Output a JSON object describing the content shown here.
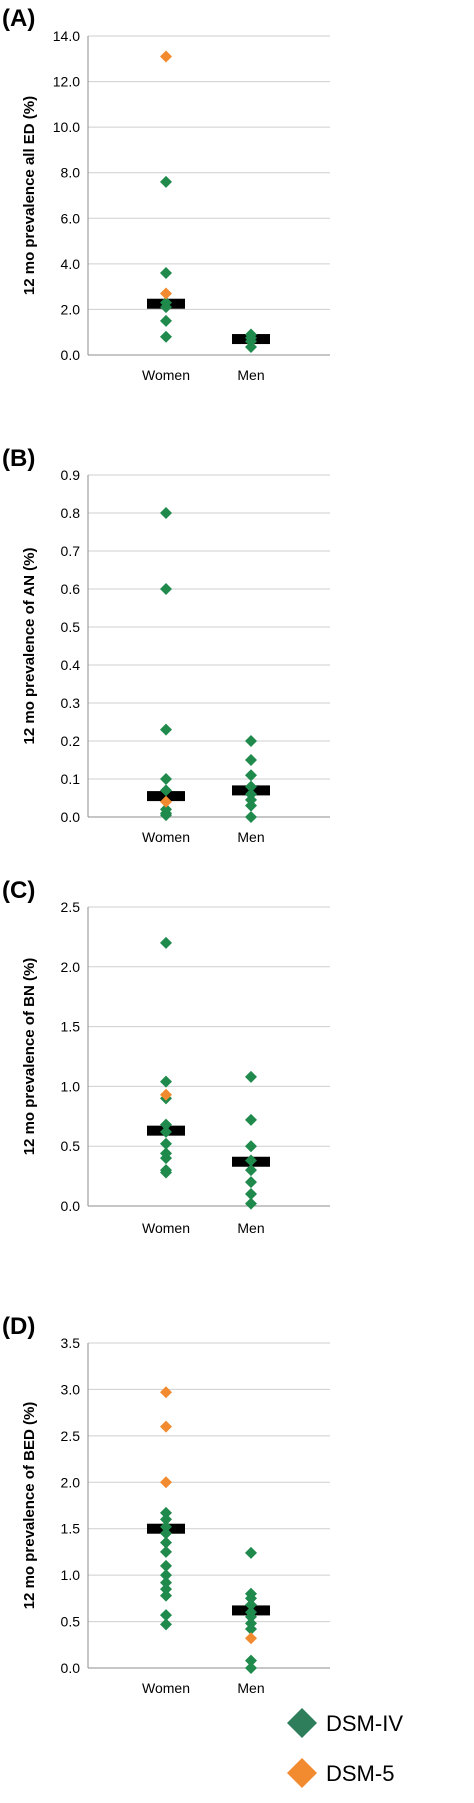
{
  "chart_data": [
    {
      "type": "scatter",
      "panel": "(A)",
      "ylabel": "12 mo  prevalence all ED (%)",
      "ylim": [
        0,
        14
      ],
      "yticks": [
        "0.0",
        "2.0",
        "4.0",
        "6.0",
        "8.0",
        "10.0",
        "12.0",
        "14.0"
      ],
      "categories": [
        "Women",
        "Men"
      ],
      "grid": true,
      "series": [
        {
          "name": "DSM-IV",
          "color": "#1f8a4c",
          "points": [
            {
              "x": "Women",
              "y": 7.6
            },
            {
              "x": "Women",
              "y": 3.6
            },
            {
              "x": "Women",
              "y": 2.3
            },
            {
              "x": "Women",
              "y": 2.1
            },
            {
              "x": "Women",
              "y": 1.5
            },
            {
              "x": "Women",
              "y": 0.8
            },
            {
              "x": "Men",
              "y": 0.9
            },
            {
              "x": "Men",
              "y": 0.75
            },
            {
              "x": "Men",
              "y": 0.6
            },
            {
              "x": "Men",
              "y": 0.35
            }
          ]
        },
        {
          "name": "DSM-5",
          "color": "#f28a30",
          "points": [
            {
              "x": "Women",
              "y": 13.1
            },
            {
              "x": "Women",
              "y": 2.7
            }
          ]
        }
      ],
      "medians": [
        {
          "x": "Women",
          "y": 2.25
        },
        {
          "x": "Men",
          "y": 0.7
        }
      ]
    },
    {
      "type": "scatter",
      "panel": "(B)",
      "ylabel": "12  mo  prevalence of AN (%)",
      "ylim": [
        0,
        0.9
      ],
      "yticks": [
        "0.0",
        "0.1",
        "0.2",
        "0.3",
        "0.4",
        "0.5",
        "0.6",
        "0.7",
        "0.8",
        "0.9"
      ],
      "categories": [
        "Women",
        "Men"
      ],
      "grid": true,
      "series": [
        {
          "name": "DSM-IV",
          "color": "#1f8a4c",
          "points": [
            {
              "x": "Women",
              "y": 0.8
            },
            {
              "x": "Women",
              "y": 0.6
            },
            {
              "x": "Women",
              "y": 0.23
            },
            {
              "x": "Women",
              "y": 0.1
            },
            {
              "x": "Women",
              "y": 0.07
            },
            {
              "x": "Women",
              "y": 0.02
            },
            {
              "x": "Women",
              "y": 0.01
            },
            {
              "x": "Women",
              "y": 0.005
            },
            {
              "x": "Men",
              "y": 0.2
            },
            {
              "x": "Men",
              "y": 0.15
            },
            {
              "x": "Men",
              "y": 0.11
            },
            {
              "x": "Men",
              "y": 0.08
            },
            {
              "x": "Men",
              "y": 0.06
            },
            {
              "x": "Men",
              "y": 0.045
            },
            {
              "x": "Men",
              "y": 0.03
            },
            {
              "x": "Men",
              "y": 0.0
            }
          ]
        },
        {
          "name": "DSM-5",
          "color": "#f28a30",
          "points": [
            {
              "x": "Women",
              "y": 0.04
            }
          ]
        }
      ],
      "medians": [
        {
          "x": "Women",
          "y": 0.055
        },
        {
          "x": "Men",
          "y": 0.07
        }
      ]
    },
    {
      "type": "scatter",
      "panel": "(C)",
      "ylabel": "12  mo  prevalence of BN (%)",
      "ylim": [
        0,
        2.5
      ],
      "yticks": [
        "0.0",
        "0.5",
        "1.0",
        "1.5",
        "2.0",
        "2.5"
      ],
      "categories": [
        "Women",
        "Men"
      ],
      "grid": true,
      "series": [
        {
          "name": "DSM-IV",
          "color": "#1f8a4c",
          "points": [
            {
              "x": "Women",
              "y": 2.2
            },
            {
              "x": "Women",
              "y": 1.04
            },
            {
              "x": "Women",
              "y": 0.9
            },
            {
              "x": "Women",
              "y": 0.68
            },
            {
              "x": "Women",
              "y": 0.62
            },
            {
              "x": "Women",
              "y": 0.52
            },
            {
              "x": "Women",
              "y": 0.44
            },
            {
              "x": "Women",
              "y": 0.4
            },
            {
              "x": "Women",
              "y": 0.3
            },
            {
              "x": "Women",
              "y": 0.28
            },
            {
              "x": "Men",
              "y": 1.08
            },
            {
              "x": "Men",
              "y": 0.72
            },
            {
              "x": "Men",
              "y": 0.5
            },
            {
              "x": "Men",
              "y": 0.38
            },
            {
              "x": "Men",
              "y": 0.3
            },
            {
              "x": "Men",
              "y": 0.2
            },
            {
              "x": "Men",
              "y": 0.1
            },
            {
              "x": "Men",
              "y": 0.02
            }
          ]
        },
        {
          "name": "DSM-5",
          "color": "#f28a30",
          "points": [
            {
              "x": "Women",
              "y": 0.93
            }
          ]
        }
      ],
      "medians": [
        {
          "x": "Women",
          "y": 0.63
        },
        {
          "x": "Men",
          "y": 0.37
        }
      ]
    },
    {
      "type": "scatter",
      "panel": "(D)",
      "ylabel": "12 mo  prevalence of BED (%)",
      "ylim": [
        0,
        3.5
      ],
      "yticks": [
        "0.0",
        "0.5",
        "1.0",
        "1.5",
        "2.0",
        "2.5",
        "3.0",
        "3.5"
      ],
      "categories": [
        "Women",
        "Men"
      ],
      "grid": true,
      "series": [
        {
          "name": "DSM-IV",
          "color": "#1f8a4c",
          "points": [
            {
              "x": "Women",
              "y": 1.67
            },
            {
              "x": "Women",
              "y": 1.6
            },
            {
              "x": "Women",
              "y": 1.52
            },
            {
              "x": "Women",
              "y": 1.45
            },
            {
              "x": "Women",
              "y": 1.35
            },
            {
              "x": "Women",
              "y": 1.25
            },
            {
              "x": "Women",
              "y": 1.1
            },
            {
              "x": "Women",
              "y": 1.0
            },
            {
              "x": "Women",
              "y": 0.92
            },
            {
              "x": "Women",
              "y": 0.85
            },
            {
              "x": "Women",
              "y": 0.78
            },
            {
              "x": "Women",
              "y": 0.57
            },
            {
              "x": "Women",
              "y": 0.47
            },
            {
              "x": "Men",
              "y": 1.24
            },
            {
              "x": "Men",
              "y": 0.8
            },
            {
              "x": "Men",
              "y": 0.75
            },
            {
              "x": "Men",
              "y": 0.68
            },
            {
              "x": "Men",
              "y": 0.6
            },
            {
              "x": "Men",
              "y": 0.55
            },
            {
              "x": "Men",
              "y": 0.48
            },
            {
              "x": "Men",
              "y": 0.42
            },
            {
              "x": "Men",
              "y": 0.08
            },
            {
              "x": "Men",
              "y": 0.0
            }
          ]
        },
        {
          "name": "DSM-5",
          "color": "#f28a30",
          "points": [
            {
              "x": "Women",
              "y": 2.97
            },
            {
              "x": "Women",
              "y": 2.6
            },
            {
              "x": "Women",
              "y": 2.0
            },
            {
              "x": "Men",
              "y": 0.32
            }
          ]
        }
      ],
      "medians": [
        {
          "x": "Women",
          "y": 1.5
        },
        {
          "x": "Men",
          "y": 0.62
        }
      ]
    }
  ],
  "legend": {
    "position": "bottom-right",
    "items": [
      {
        "label": "DSM-IV",
        "color": "#2e7d5b"
      },
      {
        "label": "DSM-5",
        "color": "#f28a30"
      }
    ]
  }
}
